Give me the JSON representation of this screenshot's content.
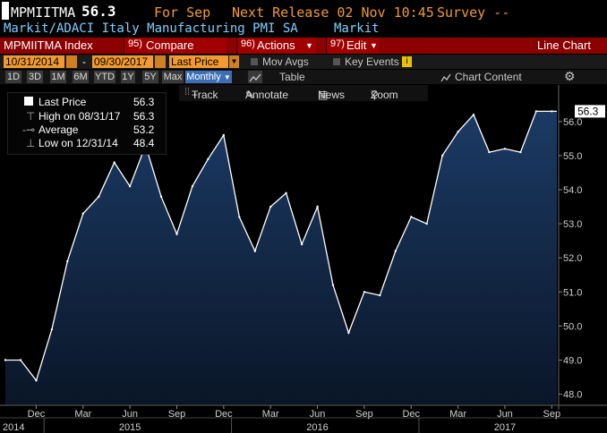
{
  "header": {
    "ticker": "MPMIITMA",
    "last_value": "56.3",
    "for_label": "For Sep",
    "next_release": "Next Release 02 Nov 10:45",
    "survey": "Survey --",
    "description": "Markit/ADACI Italy Manufacturing PMI SA",
    "source": "Markit"
  },
  "menu": {
    "index_label": "MPMIITMA Index",
    "compare_num": "95)",
    "compare_label": "Compare",
    "actions_num": "96)",
    "actions_label": "Actions",
    "edit_num": "97)",
    "edit_label": "Edit",
    "view_label": "Line Chart"
  },
  "controls": {
    "start_date": "10/31/2014",
    "separator": "-",
    "end_date": "09/30/2017",
    "field": "Last Price",
    "mov_avgs": "Mov Avgs",
    "key_events": "Key Events",
    "periods": [
      "1D",
      "3D",
      "1M",
      "6M",
      "YTD",
      "1Y",
      "5Y",
      "Max"
    ],
    "frequency": "Monthly",
    "table_label": "Table",
    "chart_content": "Chart Content"
  },
  "toolbar": {
    "track": "Track",
    "annotate": "Annotate",
    "news": "News",
    "zoom": "Zoom"
  },
  "legend": {
    "last_label": "Last Price",
    "last_value": "56.3",
    "high_label": "High on 08/31/17",
    "high_value": "56.3",
    "avg_label": "Average",
    "avg_value": "53.2",
    "low_label": "Low on 12/31/14",
    "low_value": "48.4"
  },
  "colors": {
    "background": "#000000",
    "line": "#ffffff",
    "fill_top": "#1b3a64",
    "fill_bottom": "#0a1628",
    "header_text": "#f29a2e",
    "menu_bar": "#8c0000",
    "input": "#f29a2e"
  },
  "chart_data": {
    "type": "area",
    "x": [
      "2014-10",
      "2014-11",
      "2014-12",
      "2015-01",
      "2015-02",
      "2015-03",
      "2015-04",
      "2015-05",
      "2015-06",
      "2015-07",
      "2015-08",
      "2015-09",
      "2015-10",
      "2015-11",
      "2015-12",
      "2016-01",
      "2016-02",
      "2016-03",
      "2016-04",
      "2016-05",
      "2016-06",
      "2016-07",
      "2016-08",
      "2016-09",
      "2016-10",
      "2016-11",
      "2016-12",
      "2017-01",
      "2017-02",
      "2017-03",
      "2017-04",
      "2017-05",
      "2017-06",
      "2017-07",
      "2017-08",
      "2017-09"
    ],
    "values": [
      49.0,
      49.0,
      48.4,
      49.9,
      51.9,
      53.3,
      53.8,
      54.8,
      54.1,
      55.3,
      53.8,
      52.7,
      54.1,
      54.9,
      55.6,
      53.2,
      52.2,
      53.5,
      53.9,
      52.4,
      53.5,
      51.2,
      49.8,
      51.0,
      50.9,
      52.2,
      53.2,
      53.0,
      55.0,
      55.7,
      56.2,
      55.1,
      55.2,
      55.1,
      56.3,
      56.3
    ],
    "last_value": 56.3,
    "ylim": [
      47.7,
      56.6
    ],
    "yticks": [
      "48.0",
      "49.0",
      "50.0",
      "51.0",
      "52.0",
      "53.0",
      "54.0",
      "55.0",
      "56.0"
    ],
    "xticks_month": [
      "Dec",
      "Mar",
      "Jun",
      "Sep",
      "Dec",
      "Mar",
      "Jun",
      "Sep",
      "Dec",
      "Mar",
      "Jun",
      "Sep"
    ],
    "xticks_year": [
      "2014",
      "2015",
      "2016",
      "2017"
    ],
    "grid": false,
    "legend_position": "top-left"
  }
}
